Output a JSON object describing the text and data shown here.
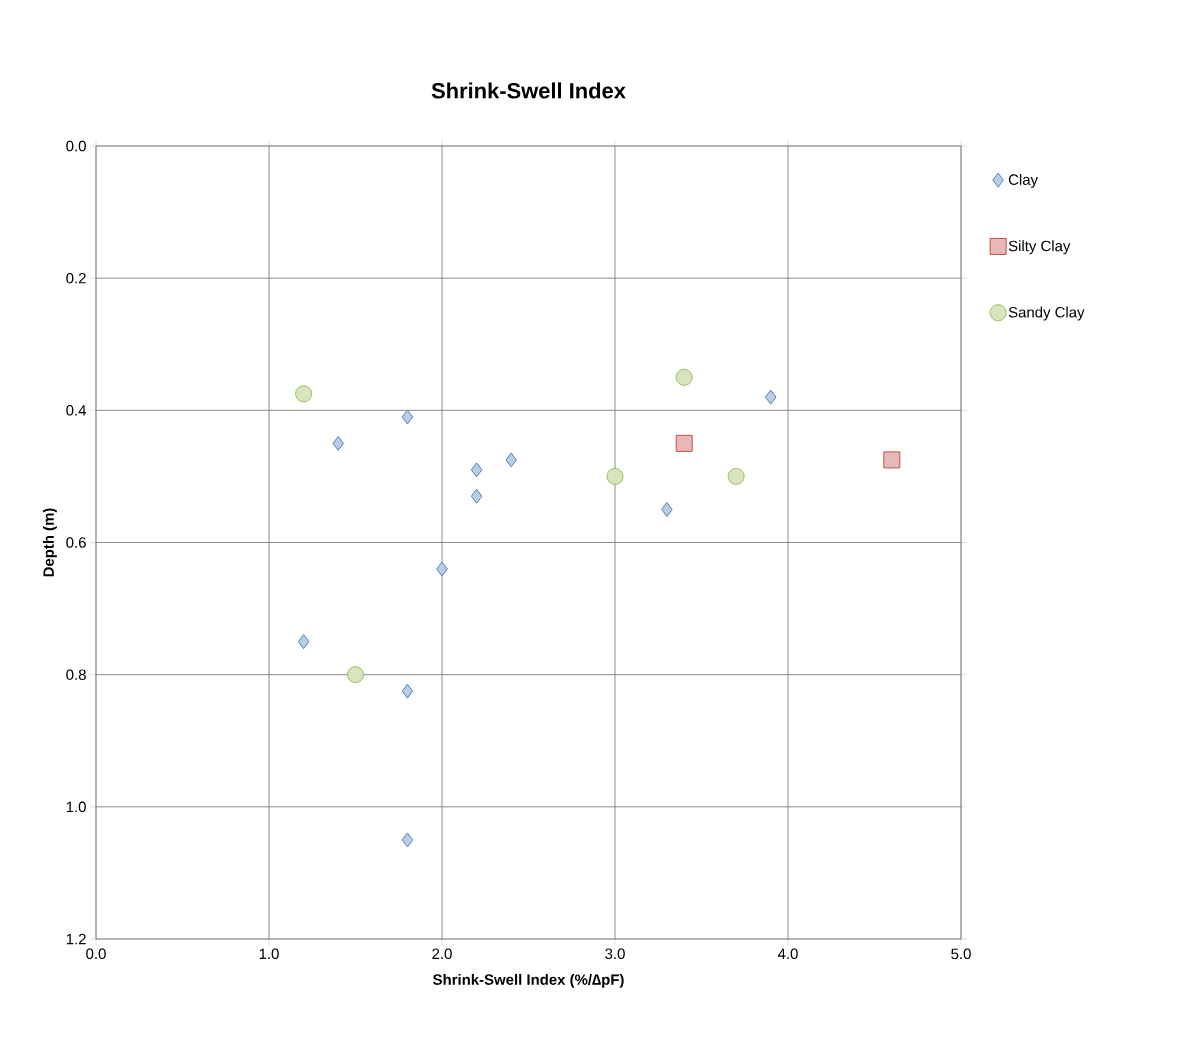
{
  "chart_data": {
    "type": "scatter",
    "title": "Shrink-Swell Index",
    "xlabel": "Shrink-Swell Index (%/∆pF)",
    "ylabel": "Depth (m)",
    "xlim": [
      0,
      5
    ],
    "ylim": [
      1.2,
      0
    ],
    "xticks": [
      {
        "value": 0,
        "label": "0.0"
      },
      {
        "value": 1,
        "label": "1.0"
      },
      {
        "value": 2,
        "label": "2.0"
      },
      {
        "value": 3,
        "label": "3.0"
      },
      {
        "value": 4,
        "label": "4.0"
      },
      {
        "value": 5,
        "label": "5.0"
      }
    ],
    "yticks": [
      {
        "value": 0,
        "label": "0.0"
      },
      {
        "value": 0.2,
        "label": "0.2"
      },
      {
        "value": 0.4,
        "label": "0.4"
      },
      {
        "value": 0.6,
        "label": "0.6"
      },
      {
        "value": 0.8,
        "label": "0.8"
      },
      {
        "value": 1.0,
        "label": "1.0"
      },
      {
        "value": 1.2,
        "label": "1.2"
      }
    ],
    "grid": true,
    "legend": "right",
    "series": [
      {
        "name": "Clay",
        "color": "#4f81bd",
        "marker": "diamond",
        "x": [
          1.8,
          1.4,
          2.2,
          2.4,
          2.2,
          3.3,
          3.9,
          2.0,
          1.2,
          1.8,
          1.8
        ],
        "values": [
          0.41,
          0.45,
          0.49,
          0.475,
          0.53,
          0.55,
          0.38,
          0.64,
          0.75,
          0.825,
          1.05
        ]
      },
      {
        "name": "Silty Clay",
        "color": "#c0504d",
        "marker": "square",
        "x": [
          3.4,
          4.6
        ],
        "values": [
          0.45,
          0.475
        ]
      },
      {
        "name": "Sandy Clay",
        "color": "#9bbb59",
        "marker": "circle",
        "x": [
          1.2,
          3.4,
          3.0,
          3.7,
          1.5
        ],
        "values": [
          0.375,
          0.35,
          0.5,
          0.5,
          0.8
        ]
      }
    ]
  }
}
